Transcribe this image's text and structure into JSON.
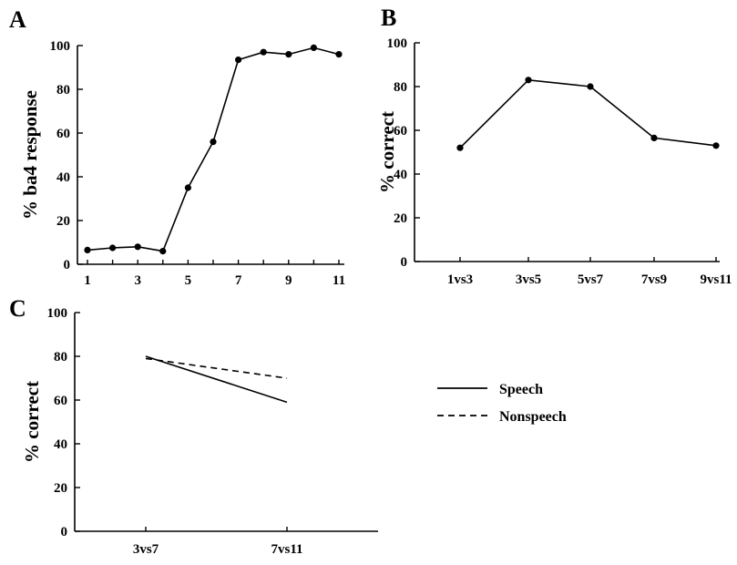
{
  "chart_data": [
    {
      "panel": "A",
      "type": "line",
      "title": "",
      "xlabel": "",
      "ylabel": "% ba4 response",
      "x": [
        1,
        2,
        3,
        4,
        5,
        6,
        7,
        8,
        9,
        10,
        11
      ],
      "xticks": [
        "1",
        "3",
        "5",
        "7",
        "9",
        "11"
      ],
      "series": [
        {
          "values": [
            6.5,
            7.5,
            8,
            6,
            35,
            56,
            93.5,
            97,
            96,
            99,
            96
          ],
          "markers": true,
          "dashed": false
        }
      ],
      "yticks": [
        "0",
        "20",
        "40",
        "60",
        "80",
        "100"
      ],
      "ylim": [
        0,
        100
      ],
      "grid": false
    },
    {
      "panel": "B",
      "type": "line",
      "title": "",
      "xlabel": "",
      "ylabel": "% correct",
      "categories": [
        "1vs3",
        "3vs5",
        "5vs7",
        "7vs9",
        "9vs11"
      ],
      "series": [
        {
          "values": [
            52,
            83,
            80,
            56.5,
            53
          ],
          "markers": true,
          "dashed": false
        }
      ],
      "yticks": [
        "0",
        "20",
        "40",
        "60",
        "80",
        "100"
      ],
      "ylim": [
        0,
        100
      ],
      "grid": false
    },
    {
      "panel": "C",
      "type": "line",
      "title": "",
      "xlabel": "",
      "ylabel": "% correct",
      "categories": [
        "3vs7",
        "7vs11"
      ],
      "series": [
        {
          "name": "Speech",
          "values": [
            80,
            59
          ],
          "markers": false,
          "dashed": false
        },
        {
          "name": "Nonspeech",
          "values": [
            79,
            70
          ],
          "markers": false,
          "dashed": true
        }
      ],
      "yticks": [
        "0",
        "20",
        "40",
        "60",
        "80",
        "100"
      ],
      "ylim": [
        0,
        100
      ],
      "legend": "right",
      "grid": false
    }
  ]
}
